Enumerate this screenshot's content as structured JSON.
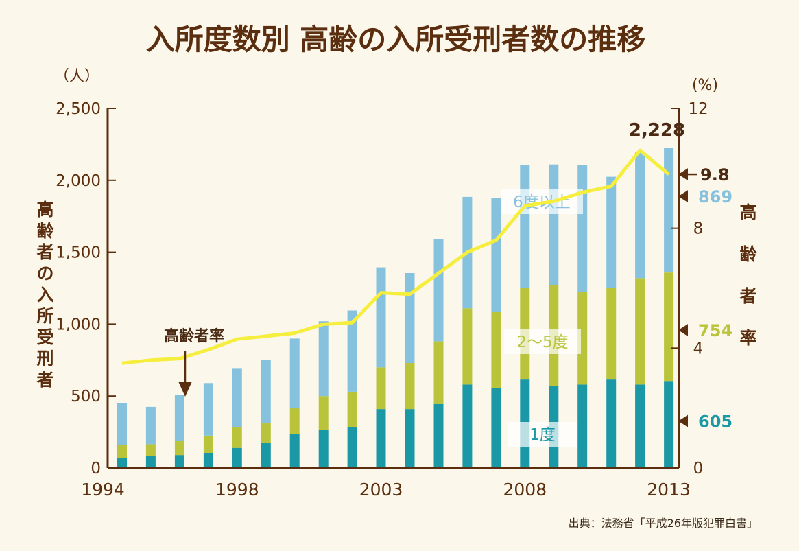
{
  "title": "入所度数別  高齢の入所受刑者数の推移",
  "left_axis": {
    "unit": "（人）",
    "label": [
      "高",
      "齢",
      "者",
      "の",
      "入",
      "所",
      "受",
      "刑",
      "者"
    ]
  },
  "right_axis": {
    "unit": "(%)",
    "label": [
      "高",
      "齢",
      "者",
      "率"
    ]
  },
  "annotation": "高齢者率",
  "source": "出典：法務省「平成26年版犯罪白書」",
  "colors": {
    "one": "#1a98a6",
    "two_five": "#b9c43a",
    "six_plus": "#86c1dd",
    "rate": "#f5ee3c",
    "axis": "#5a2e0f"
  },
  "chart_data": {
    "type": "bar",
    "stacked": true,
    "x": [
      1994,
      1995,
      1996,
      1997,
      1998,
      1999,
      2000,
      2001,
      2002,
      2003,
      2004,
      2005,
      2006,
      2007,
      2008,
      2009,
      2010,
      2011,
      2012,
      2013
    ],
    "x_ticks": [
      "1994",
      "1998",
      "2003",
      "2008",
      "2013"
    ],
    "series": [
      {
        "name": "1度",
        "color": "#1a98a6",
        "values": [
          70,
          85,
          90,
          105,
          140,
          175,
          235,
          265,
          285,
          410,
          410,
          445,
          580,
          555,
          615,
          570,
          580,
          615,
          580,
          605
        ]
      },
      {
        "name": "2～5度",
        "color": "#b9c43a",
        "values": [
          90,
          80,
          100,
          120,
          145,
          140,
          180,
          235,
          245,
          290,
          320,
          435,
          530,
          530,
          635,
          700,
          645,
          635,
          740,
          754
        ]
      },
      {
        "name": "6度以上",
        "color": "#86c1dd",
        "values": [
          290,
          260,
          320,
          365,
          405,
          435,
          485,
          520,
          565,
          695,
          625,
          710,
          775,
          795,
          855,
          840,
          880,
          775,
          875,
          869
        ]
      }
    ],
    "totals": [
      450,
      425,
      510,
      590,
      690,
      750,
      900,
      1020,
      1095,
      1395,
      1355,
      1590,
      1885,
      1880,
      2105,
      2110,
      2105,
      2025,
      2195,
      2228
    ],
    "line": {
      "name": "高齢者率",
      "axis": "right",
      "values": [
        3.5,
        3.6,
        3.65,
        3.95,
        4.3,
        4.4,
        4.5,
        4.8,
        4.85,
        5.85,
        5.8,
        6.5,
        7.2,
        7.6,
        8.75,
        8.9,
        9.2,
        9.4,
        10.6,
        9.8
      ]
    },
    "y_left": {
      "min": 0,
      "max": 2500,
      "ticks": [
        "0",
        "500",
        "1,000",
        "1,500",
        "2,000",
        "2,500"
      ]
    },
    "y_right": {
      "min": 0,
      "max": 12,
      "ticks": [
        "0",
        "4",
        "8",
        "12"
      ]
    },
    "end_labels": {
      "total": "2,228",
      "rate": "9.8",
      "six_plus": "869",
      "two_five": "754",
      "one": "605"
    },
    "segment_labels": {
      "six_plus": "6度以上",
      "two_five": "2～5度",
      "one": "1度"
    }
  }
}
